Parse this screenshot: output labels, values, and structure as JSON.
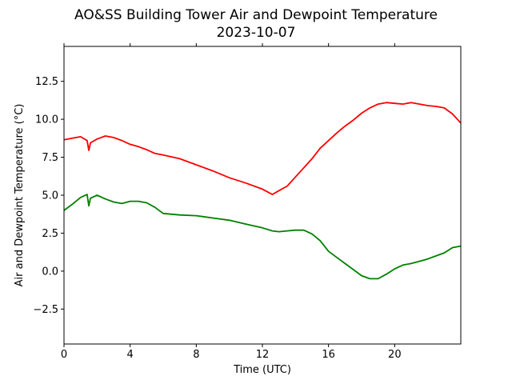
{
  "chart_data": {
    "type": "line",
    "title": "AO&SS Building Tower Air and Dewpoint Temperature",
    "subtitle": "2023-10-07",
    "xlabel": "Time (UTC)",
    "ylabel": "Air and Dewpoint Temperature (°C)",
    "xlim": [
      0,
      24
    ],
    "ylim": [
      -4.8,
      14.8
    ],
    "x_ticks": [
      0,
      4,
      8,
      12,
      16,
      20
    ],
    "x_tick_labels": [
      "0",
      "4",
      "8",
      "12",
      "16",
      "20"
    ],
    "y_ticks": [
      -2.5,
      0.0,
      2.5,
      5.0,
      7.5,
      10.0,
      12.5
    ],
    "y_tick_labels": [
      "−2.5",
      "0.0",
      "2.5",
      "5.0",
      "7.5",
      "10.0",
      "12.5"
    ],
    "grid": false,
    "legend": "none",
    "x": [
      0,
      0.5,
      1.0,
      1.4,
      1.5,
      1.6,
      2.0,
      2.5,
      3.0,
      3.5,
      4.0,
      4.5,
      5.0,
      5.5,
      6.0,
      7.0,
      8.0,
      9.0,
      10.0,
      11.0,
      12.0,
      12.6,
      13.0,
      13.5,
      14.0,
      14.5,
      15.0,
      15.5,
      16.0,
      16.5,
      17.0,
      17.5,
      18.0,
      18.5,
      19.0,
      19.5,
      20.0,
      20.5,
      21.0,
      21.5,
      22.0,
      22.5,
      23.0,
      23.5,
      24.0
    ],
    "series": [
      {
        "color": "#ff0000",
        "values": [
          8.65,
          8.75,
          8.85,
          8.6,
          7.95,
          8.45,
          8.7,
          8.9,
          8.8,
          8.6,
          8.35,
          8.2,
          8.0,
          7.75,
          7.65,
          7.4,
          7.0,
          6.6,
          6.15,
          5.8,
          5.4,
          5.05,
          5.3,
          5.6,
          6.2,
          6.8,
          7.4,
          8.1,
          8.6,
          9.1,
          9.55,
          9.95,
          10.4,
          10.75,
          11.0,
          11.1,
          11.05,
          11.0,
          11.1,
          11.0,
          10.9,
          10.85,
          10.75,
          10.35,
          9.75
        ]
      },
      {
        "color": "#008000",
        "values": [
          4.0,
          4.4,
          4.85,
          5.05,
          4.3,
          4.8,
          5.0,
          4.75,
          4.55,
          4.45,
          4.6,
          4.6,
          4.5,
          4.2,
          3.8,
          3.7,
          3.65,
          3.5,
          3.35,
          3.1,
          2.85,
          2.65,
          2.6,
          2.65,
          2.7,
          2.7,
          2.45,
          2.0,
          1.3,
          0.9,
          0.5,
          0.1,
          -0.3,
          -0.5,
          -0.5,
          -0.2,
          0.15,
          0.4,
          0.5,
          0.65,
          0.8,
          1.0,
          1.2,
          1.55,
          1.65
        ]
      }
    ]
  }
}
